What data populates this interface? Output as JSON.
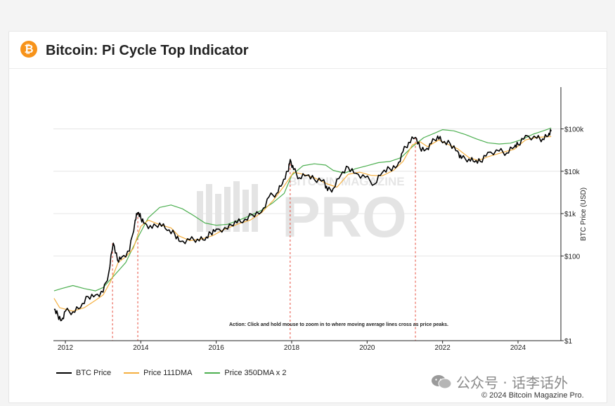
{
  "title": "Bitcoin: Pi Cycle Top Indicator",
  "logo_glyph": "₿",
  "watermark": {
    "line1": "BITCOIN MAGAZINE",
    "line2": "PRO"
  },
  "annotation": "Action: Click and hold mouse to zoom in to where moving average lines cross as price peaks.",
  "footer": {
    "wechat": "公众号 · 话李话外",
    "copyright": "© 2024 Bitcoin Magazine Pro."
  },
  "colors": {
    "price": "#000000",
    "ma111": "#f5b041",
    "ma350x2": "#4caf50",
    "cross_line": "#e74c3c",
    "accent": "#f7931a"
  },
  "chart_data": {
    "type": "line",
    "title": "Bitcoin: Pi Cycle Top Indicator",
    "ylabel": "BTC Price (USD)",
    "yscale": "log",
    "ylim": [
      1,
      800000
    ],
    "xlim": [
      2011.7,
      2025.1
    ],
    "x_ticks": [
      2012,
      2014,
      2016,
      2018,
      2020,
      2022,
      2024
    ],
    "y_ticks": [
      {
        "value": 1,
        "label": "$1"
      },
      {
        "value": 100,
        "label": "$100"
      },
      {
        "value": 1000,
        "label": "$1k"
      },
      {
        "value": 10000,
        "label": "$10k"
      },
      {
        "value": 100000,
        "label": "$100k"
      }
    ],
    "grid": true,
    "legend_position": "bottom-left",
    "cross_events": [
      2013.25,
      2013.92,
      2017.96,
      2021.28
    ],
    "series": [
      {
        "name": "BTC Price",
        "color": "#000000",
        "points": [
          [
            2011.7,
            5.5
          ],
          [
            2011.8,
            4
          ],
          [
            2011.9,
            3
          ],
          [
            2012.0,
            5
          ],
          [
            2012.2,
            4.8
          ],
          [
            2012.4,
            6
          ],
          [
            2012.6,
            11
          ],
          [
            2012.8,
            12
          ],
          [
            2013.0,
            14
          ],
          [
            2013.15,
            40
          ],
          [
            2013.27,
            200
          ],
          [
            2013.38,
            80
          ],
          [
            2013.5,
            95
          ],
          [
            2013.7,
            130
          ],
          [
            2013.85,
            700
          ],
          [
            2013.92,
            1050
          ],
          [
            2014.0,
            800
          ],
          [
            2014.1,
            600
          ],
          [
            2014.3,
            450
          ],
          [
            2014.5,
            600
          ],
          [
            2014.7,
            400
          ],
          [
            2014.9,
            330
          ],
          [
            2015.05,
            220
          ],
          [
            2015.3,
            240
          ],
          [
            2015.5,
            250
          ],
          [
            2015.7,
            235
          ],
          [
            2015.85,
            350
          ],
          [
            2016.0,
            430
          ],
          [
            2016.3,
            430
          ],
          [
            2016.5,
            670
          ],
          [
            2016.7,
            610
          ],
          [
            2016.95,
            950
          ],
          [
            2017.2,
            1100
          ],
          [
            2017.4,
            2500
          ],
          [
            2017.6,
            3000
          ],
          [
            2017.75,
            5000
          ],
          [
            2017.9,
            10000
          ],
          [
            2017.96,
            19000
          ],
          [
            2018.05,
            11000
          ],
          [
            2018.2,
            7000
          ],
          [
            2018.4,
            8000
          ],
          [
            2018.6,
            6400
          ],
          [
            2018.85,
            6300
          ],
          [
            2018.95,
            3500
          ],
          [
            2019.1,
            3900
          ],
          [
            2019.3,
            8000
          ],
          [
            2019.5,
            12500
          ],
          [
            2019.7,
            9000
          ],
          [
            2019.95,
            7200
          ],
          [
            2020.2,
            5000
          ],
          [
            2020.4,
            9300
          ],
          [
            2020.6,
            11500
          ],
          [
            2020.8,
            13500
          ],
          [
            2020.95,
            29000
          ],
          [
            2021.1,
            48000
          ],
          [
            2021.28,
            63000
          ],
          [
            2021.4,
            36000
          ],
          [
            2021.55,
            32000
          ],
          [
            2021.7,
            45000
          ],
          [
            2021.87,
            68000
          ],
          [
            2022.0,
            47000
          ],
          [
            2022.2,
            45000
          ],
          [
            2022.4,
            30000
          ],
          [
            2022.5,
            20000
          ],
          [
            2022.7,
            19500
          ],
          [
            2022.85,
            16500
          ],
          [
            2023.0,
            17000
          ],
          [
            2023.2,
            28000
          ],
          [
            2023.5,
            30000
          ],
          [
            2023.7,
            27000
          ],
          [
            2023.9,
            37000
          ],
          [
            2024.0,
            43000
          ],
          [
            2024.2,
            70000
          ],
          [
            2024.5,
            60000
          ],
          [
            2024.65,
            58000
          ],
          [
            2024.8,
            68000
          ],
          [
            2024.88,
            88000
          ]
        ]
      },
      {
        "name": "Price 111DMA",
        "color": "#f5b041",
        "points": [
          [
            2011.7,
            10
          ],
          [
            2011.85,
            6
          ],
          [
            2012.2,
            5
          ],
          [
            2012.5,
            6
          ],
          [
            2012.8,
            9
          ],
          [
            2013.0,
            12
          ],
          [
            2013.2,
            25
          ],
          [
            2013.4,
            70
          ],
          [
            2013.6,
            95
          ],
          [
            2013.8,
            150
          ],
          [
            2014.0,
            500
          ],
          [
            2014.2,
            700
          ],
          [
            2014.5,
            550
          ],
          [
            2014.8,
            460
          ],
          [
            2015.0,
            300
          ],
          [
            2015.3,
            230
          ],
          [
            2015.6,
            250
          ],
          [
            2015.9,
            300
          ],
          [
            2016.2,
            420
          ],
          [
            2016.6,
            580
          ],
          [
            2016.9,
            700
          ],
          [
            2017.2,
            1050
          ],
          [
            2017.5,
            2000
          ],
          [
            2017.8,
            4500
          ],
          [
            2018.05,
            9500
          ],
          [
            2018.3,
            8500
          ],
          [
            2018.6,
            7000
          ],
          [
            2018.95,
            5000
          ],
          [
            2019.2,
            4200
          ],
          [
            2019.5,
            8500
          ],
          [
            2019.8,
            9500
          ],
          [
            2020.1,
            8000
          ],
          [
            2020.4,
            7800
          ],
          [
            2020.7,
            10500
          ],
          [
            2020.95,
            17000
          ],
          [
            2021.2,
            42000
          ],
          [
            2021.4,
            50000
          ],
          [
            2021.6,
            38000
          ],
          [
            2021.9,
            55000
          ],
          [
            2022.1,
            45000
          ],
          [
            2022.4,
            34000
          ],
          [
            2022.7,
            21000
          ],
          [
            2022.95,
            18000
          ],
          [
            2023.2,
            22000
          ],
          [
            2023.6,
            28000
          ],
          [
            2023.9,
            33000
          ],
          [
            2024.2,
            55000
          ],
          [
            2024.5,
            63000
          ],
          [
            2024.88,
            66000
          ]
        ]
      },
      {
        "name": "Price 350DMA x 2",
        "color": "#4caf50",
        "points": [
          [
            2011.7,
            15
          ],
          [
            2011.9,
            17
          ],
          [
            2012.2,
            20
          ],
          [
            2012.5,
            17
          ],
          [
            2012.8,
            15
          ],
          [
            2013.0,
            18
          ],
          [
            2013.3,
            35
          ],
          [
            2013.6,
            70
          ],
          [
            2013.9,
            250
          ],
          [
            2014.2,
            800
          ],
          [
            2014.5,
            1400
          ],
          [
            2014.8,
            1600
          ],
          [
            2015.1,
            1300
          ],
          [
            2015.4,
            900
          ],
          [
            2015.7,
            600
          ],
          [
            2016.0,
            530
          ],
          [
            2016.3,
            560
          ],
          [
            2016.6,
            700
          ],
          [
            2016.9,
            900
          ],
          [
            2017.2,
            1200
          ],
          [
            2017.5,
            1800
          ],
          [
            2017.8,
            3000
          ],
          [
            2018.0,
            8000
          ],
          [
            2018.3,
            13500
          ],
          [
            2018.6,
            15000
          ],
          [
            2018.9,
            14000
          ],
          [
            2019.1,
            10500
          ],
          [
            2019.4,
            9000
          ],
          [
            2019.7,
            11500
          ],
          [
            2020.0,
            13500
          ],
          [
            2020.3,
            16000
          ],
          [
            2020.6,
            17000
          ],
          [
            2020.9,
            21000
          ],
          [
            2021.2,
            38000
          ],
          [
            2021.5,
            62000
          ],
          [
            2021.8,
            80000
          ],
          [
            2022.0,
            96000
          ],
          [
            2022.3,
            90000
          ],
          [
            2022.6,
            74000
          ],
          [
            2022.9,
            58000
          ],
          [
            2023.2,
            47000
          ],
          [
            2023.5,
            44000
          ],
          [
            2023.8,
            46000
          ],
          [
            2024.1,
            56000
          ],
          [
            2024.4,
            75000
          ],
          [
            2024.7,
            92000
          ],
          [
            2024.88,
            105000
          ]
        ]
      }
    ]
  }
}
